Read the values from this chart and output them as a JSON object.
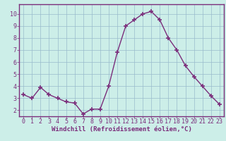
{
  "x": [
    0,
    1,
    2,
    3,
    4,
    5,
    6,
    7,
    8,
    9,
    10,
    11,
    12,
    13,
    14,
    15,
    16,
    17,
    18,
    19,
    20,
    21,
    22,
    23
  ],
  "y": [
    3.3,
    3.0,
    3.9,
    3.3,
    3.0,
    2.7,
    2.6,
    1.7,
    2.1,
    2.1,
    4.0,
    6.8,
    9.0,
    9.5,
    10.0,
    10.2,
    9.5,
    8.0,
    7.0,
    5.7,
    4.8,
    4.0,
    3.2,
    2.5
  ],
  "line_color": "#7b2d7b",
  "marker": "+",
  "marker_size": 4,
  "linewidth": 1.0,
  "xlabel": "Windchill (Refroidissement éolien,°C)",
  "xlabel_fontsize": 6.5,
  "yticks": [
    2,
    3,
    4,
    5,
    6,
    7,
    8,
    9,
    10
  ],
  "xticks": [
    0,
    1,
    2,
    3,
    4,
    5,
    6,
    7,
    8,
    9,
    10,
    11,
    12,
    13,
    14,
    15,
    16,
    17,
    18,
    19,
    20,
    21,
    22,
    23
  ],
  "xlim": [
    -0.5,
    23.5
  ],
  "ylim": [
    1.5,
    10.8
  ],
  "background_color": "#cceee8",
  "grid_color": "#99bbcc",
  "tick_color": "#7b2d7b",
  "tick_fontsize": 6.0,
  "spine_color": "#7b2d7b"
}
